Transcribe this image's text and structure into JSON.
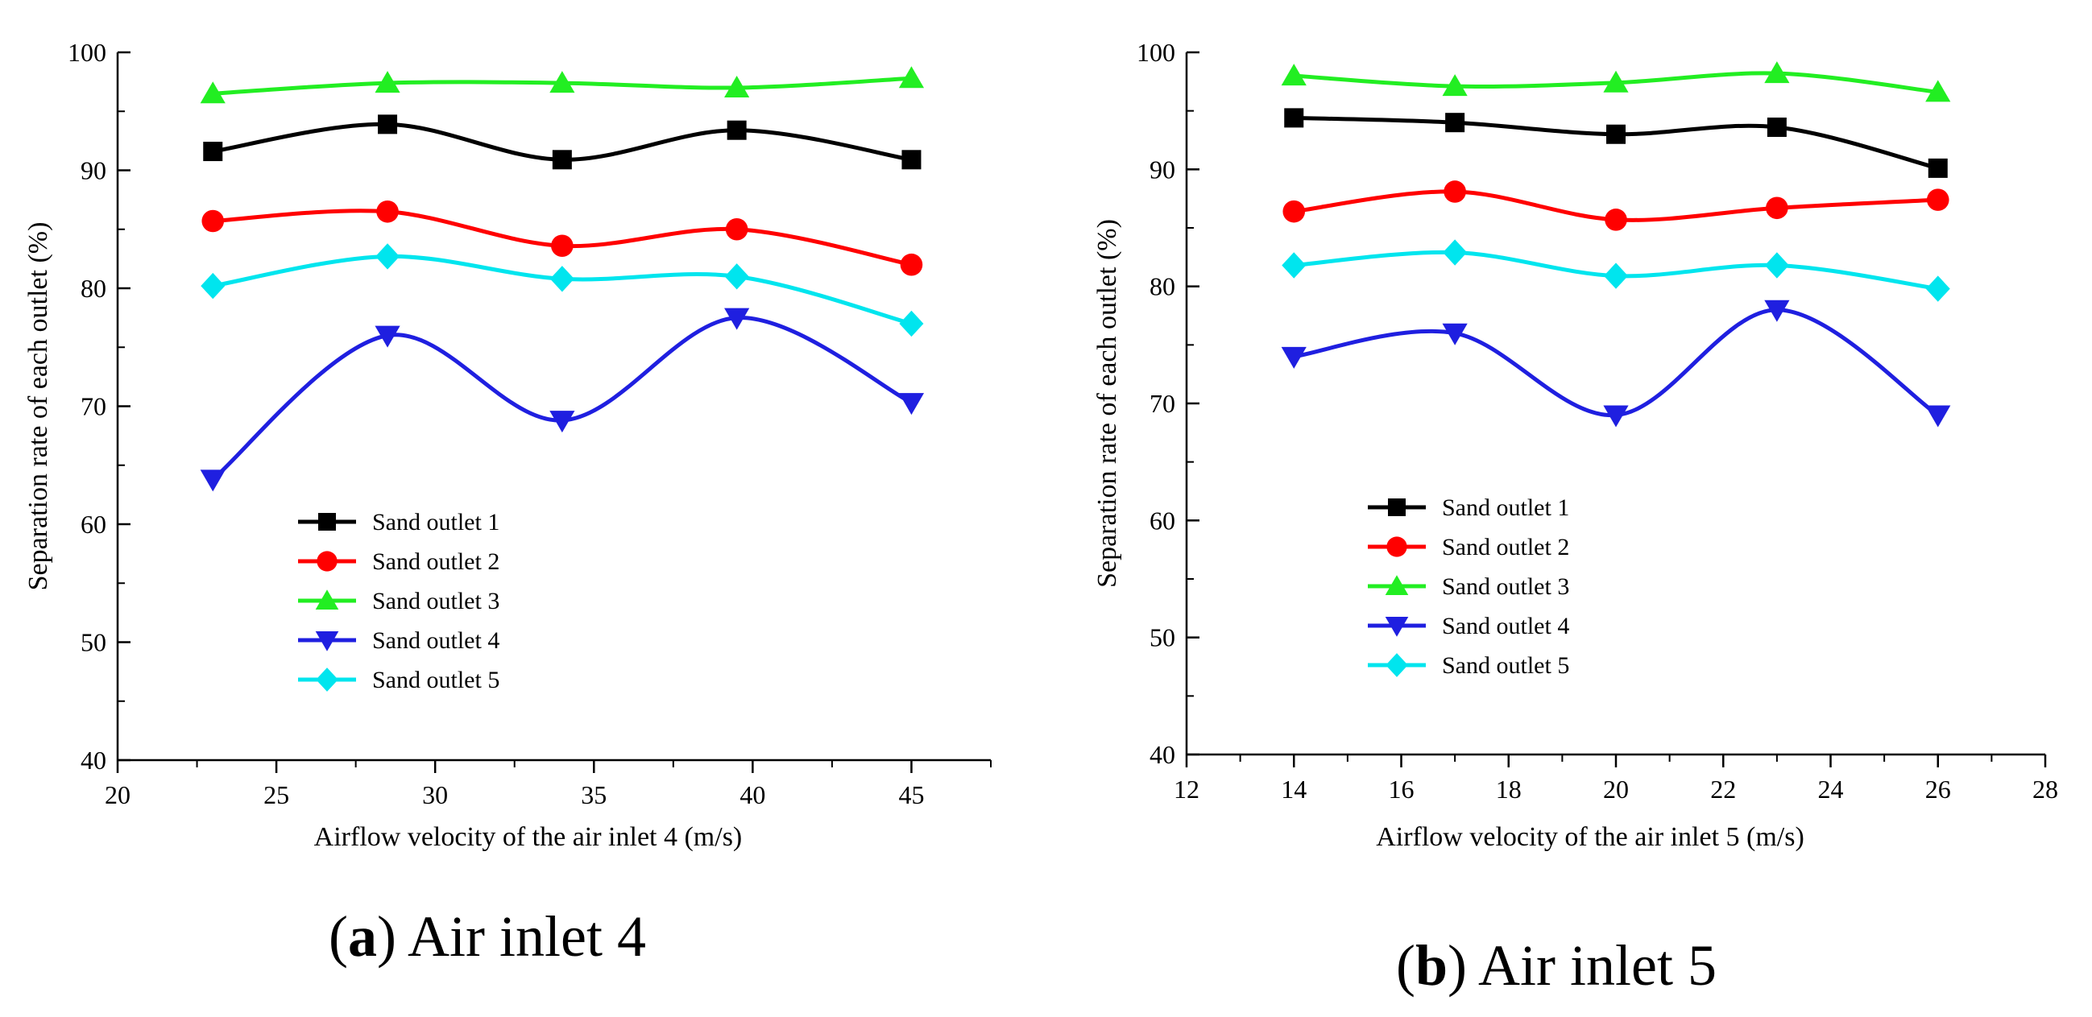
{
  "figure": {
    "captions": [
      {
        "open": "(",
        "letter": "a",
        "close": ")",
        "text": " Air inlet 4"
      },
      {
        "open": "(",
        "letter": "b",
        "close": ")",
        "text": " Air inlet 5"
      }
    ]
  },
  "chart_data": [
    {
      "type": "line",
      "title": "",
      "xlabel": "Airflow velocity of the air inlet 4 (m/s)",
      "ylabel": "Separation rate of each outlet (%)",
      "xlim": [
        20,
        47.5
      ],
      "ylim": [
        40,
        100
      ],
      "xticks": [
        20,
        25,
        30,
        35,
        40,
        45
      ],
      "yticks": [
        40,
        50,
        60,
        70,
        80,
        90,
        100
      ],
      "x": [
        23,
        28.5,
        34,
        39.5,
        45
      ],
      "grid": false,
      "legend_position": "lower-left",
      "series": [
        {
          "name": "Sand outlet 1",
          "color": "#000000",
          "marker": "square",
          "values": [
            91.6,
            93.9,
            90.9,
            93.4,
            90.9
          ]
        },
        {
          "name": "Sand outlet 2",
          "color": "#ff0000",
          "marker": "circle",
          "values": [
            85.7,
            86.5,
            83.6,
            85.0,
            82.0
          ]
        },
        {
          "name": "Sand outlet 3",
          "color": "#22ee22",
          "marker": "triangle-up",
          "values": [
            96.5,
            97.4,
            97.4,
            97.0,
            97.8
          ]
        },
        {
          "name": "Sand outlet 4",
          "color": "#1f1fe0",
          "marker": "triangle-down",
          "values": [
            63.8,
            76.0,
            68.8,
            77.5,
            70.3
          ]
        },
        {
          "name": "Sand outlet 5",
          "color": "#00e5ee",
          "marker": "diamond",
          "values": [
            80.2,
            82.7,
            80.8,
            81.0,
            77.0
          ]
        }
      ]
    },
    {
      "type": "line",
      "title": "",
      "xlabel": "Airflow velocity of the air inlet 5 (m/s)",
      "ylabel": "Separation rate of each outlet (%)",
      "xlim": [
        12,
        28
      ],
      "ylim": [
        40,
        100
      ],
      "xticks": [
        12,
        14,
        16,
        18,
        20,
        22,
        24,
        26,
        28
      ],
      "yticks": [
        40,
        50,
        60,
        70,
        80,
        90,
        100
      ],
      "x": [
        14,
        17,
        20,
        23,
        26
      ],
      "grid": false,
      "legend_position": "lower-left",
      "series": [
        {
          "name": "Sand outlet 1",
          "color": "#000000",
          "marker": "square",
          "values": [
            94.4,
            94.0,
            93.0,
            93.6,
            90.1
          ]
        },
        {
          "name": "Sand outlet 2",
          "color": "#ff0000",
          "marker": "circle",
          "values": [
            86.4,
            88.1,
            85.7,
            86.7,
            87.4
          ]
        },
        {
          "name": "Sand outlet 3",
          "color": "#22ee22",
          "marker": "triangle-up",
          "values": [
            98.0,
            97.1,
            97.4,
            98.2,
            96.6
          ]
        },
        {
          "name": "Sand outlet 4",
          "color": "#1f1fe0",
          "marker": "triangle-down",
          "values": [
            74.0,
            76.0,
            69.0,
            78.0,
            69.0
          ]
        },
        {
          "name": "Sand outlet 5",
          "color": "#00e5ee",
          "marker": "diamond",
          "values": [
            81.8,
            82.9,
            80.9,
            81.8,
            79.8
          ]
        }
      ]
    }
  ]
}
